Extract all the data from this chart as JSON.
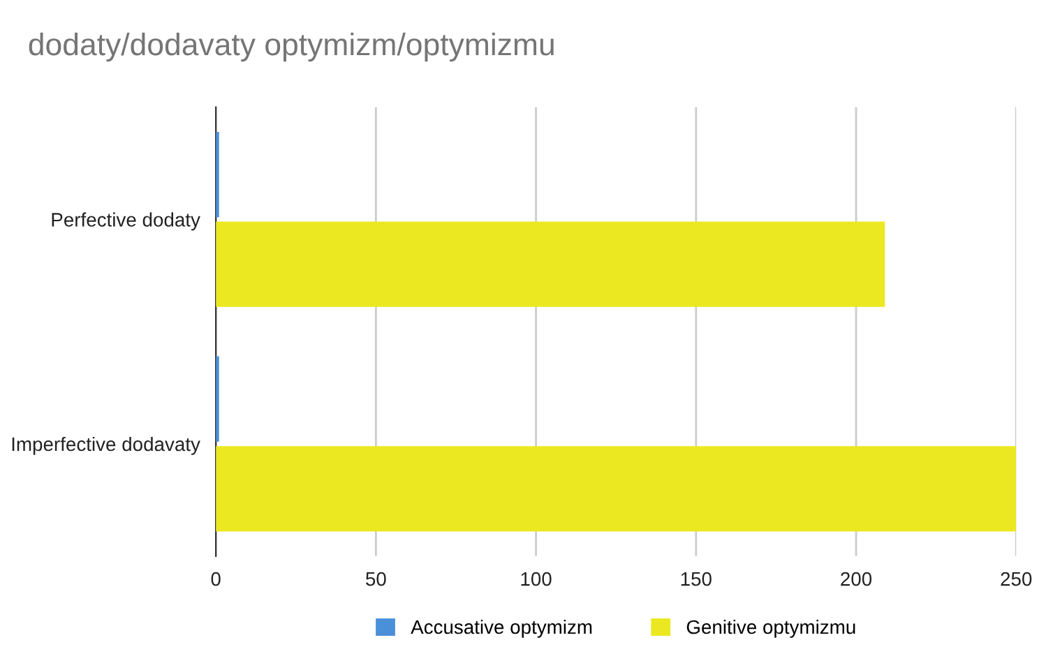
{
  "chart_data": {
    "type": "bar",
    "orientation": "horizontal",
    "title": "dodaty/dodavaty optymizm/optymizmu",
    "categories": [
      "Perfective dodaty",
      "Imperfective dodavaty"
    ],
    "series": [
      {
        "name": "Accusative optymizm",
        "color": "#4a90d9",
        "values": [
          1,
          1
        ]
      },
      {
        "name": "Genitive optymizmu",
        "color": "#ebe822",
        "values": [
          209,
          250
        ]
      }
    ],
    "xlim": [
      0,
      250
    ],
    "xticks": [
      0,
      50,
      100,
      150,
      200,
      250
    ],
    "grid": "x",
    "legend": "bottom"
  }
}
